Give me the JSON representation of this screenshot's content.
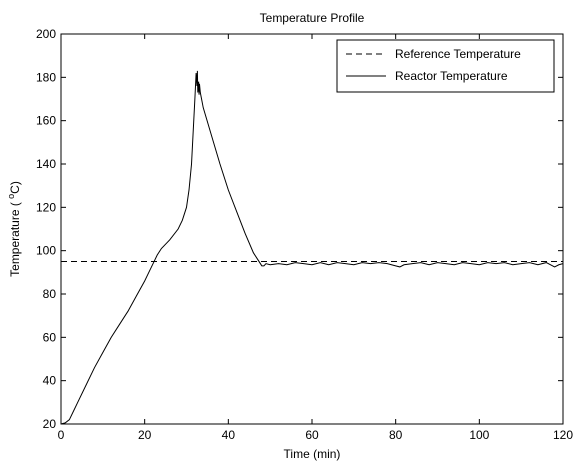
{
  "chart_data": {
    "type": "line",
    "title": "Temperature Profile",
    "xlabel": "Time (min)",
    "ylabel_prefix": "Temperature ( ",
    "ylabel_sup": "o",
    "ylabel_suffix": "C)",
    "xlim": [
      0,
      120
    ],
    "ylim": [
      20,
      200
    ],
    "xticks": [
      0,
      20,
      40,
      60,
      80,
      100,
      120
    ],
    "yticks": [
      20,
      40,
      60,
      80,
      100,
      120,
      140,
      160,
      180,
      200
    ],
    "grid": false,
    "legend_position": "top-right",
    "series": [
      {
        "name": "Reference Temperature",
        "style": "dashed",
        "color": "#000000",
        "x": [
          0,
          120
        ],
        "y": [
          95,
          95
        ]
      },
      {
        "name": "Reactor Temperature",
        "style": "solid",
        "color": "#000000",
        "x": [
          0,
          1,
          2,
          3,
          4,
          6,
          8,
          10,
          12,
          14,
          16,
          18,
          20,
          21,
          22,
          23,
          24,
          26,
          28,
          29,
          30,
          30.6,
          31.2,
          31.6,
          32,
          32.3,
          32.5,
          32.6,
          32.7,
          32.9,
          33,
          33.1,
          33.3,
          33.6,
          34,
          36,
          38,
          40,
          42,
          44,
          46,
          47,
          48,
          48.5,
          49,
          50,
          52,
          54,
          56,
          58,
          60,
          62,
          64,
          66,
          68,
          70,
          72,
          74,
          76,
          78,
          80,
          81,
          82,
          84,
          86,
          88,
          90,
          92,
          94,
          96,
          98,
          100,
          102,
          104,
          106,
          108,
          110,
          112,
          114,
          116,
          118,
          119,
          120
        ],
        "y": [
          20,
          20.5,
          22,
          26,
          30,
          38,
          46,
          53,
          60,
          66,
          72,
          79,
          86,
          90,
          94,
          98,
          101,
          105,
          110,
          114,
          120,
          128,
          140,
          155,
          170,
          182,
          176,
          183,
          173,
          178,
          172,
          177,
          173,
          170,
          166,
          153,
          140,
          128,
          118,
          108,
          99,
          96,
          93,
          93,
          94,
          93.5,
          94,
          93.5,
          94.5,
          94,
          93.5,
          94.5,
          93.5,
          94.5,
          94,
          93.5,
          94.5,
          94,
          94.5,
          94,
          93,
          92.5,
          93.5,
          94,
          94.5,
          93.5,
          94.5,
          94,
          93.5,
          94.5,
          94,
          93.5,
          94.5,
          94,
          94.5,
          93.5,
          94,
          94.5,
          93.5,
          94.5,
          92.5,
          93.5,
          94
        ]
      }
    ]
  }
}
